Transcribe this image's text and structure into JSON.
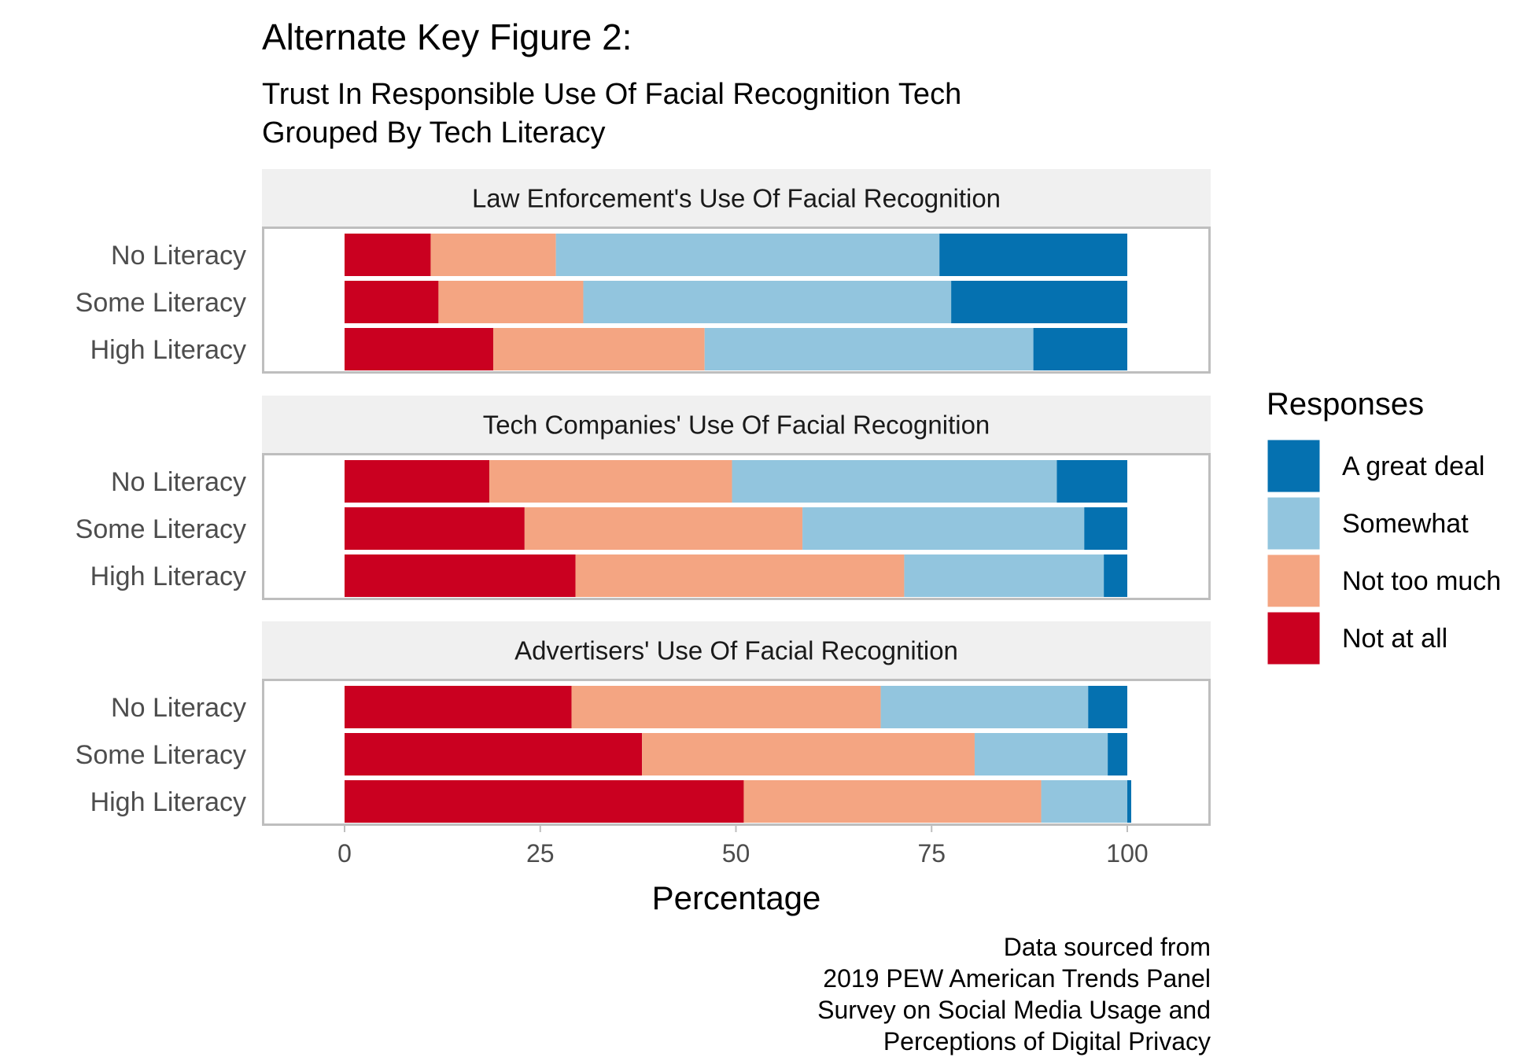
{
  "chart_data": {
    "type": "bar",
    "orientation": "horizontal",
    "stacked": true,
    "title": "Alternate Key Figure 2:",
    "subtitle": [
      "Trust In Responsible Use Of Facial Recognition Tech",
      "Grouped By Tech Literacy"
    ],
    "xlabel": "Percentage",
    "xlim": [
      0,
      100
    ],
    "xticks": [
      "0",
      "25",
      "50",
      "75",
      "100"
    ],
    "categories": [
      "No Literacy",
      "Some Literacy",
      "High Literacy"
    ],
    "legend": {
      "title": "Responses",
      "position": "right",
      "entries": [
        "A great deal",
        "Somewhat",
        "Not too much",
        "Not at all"
      ]
    },
    "series_colors": {
      "Not at all": "#CA0020",
      "Not too much": "#F4A582",
      "Somewhat": "#92C5DE",
      "A great deal": "#0571B0"
    },
    "stack_order": [
      "Not at all",
      "Not too much",
      "Somewhat",
      "A great deal"
    ],
    "panels": [
      {
        "title": "Law Enforcement's Use Of Facial Recognition",
        "series": [
          {
            "name": "Not at all",
            "values": [
              11,
              12,
              19
            ]
          },
          {
            "name": "Not too much",
            "values": [
              16,
              18.5,
              27
            ]
          },
          {
            "name": "Somewhat",
            "values": [
              49,
              47,
              42
            ]
          },
          {
            "name": "A great deal",
            "values": [
              24,
              22.5,
              12
            ]
          }
        ]
      },
      {
        "title": "Tech Companies' Use Of Facial Recognition",
        "series": [
          {
            "name": "Not at all",
            "values": [
              18.5,
              23,
              29.5
            ]
          },
          {
            "name": "Not too much",
            "values": [
              31,
              35.5,
              42
            ]
          },
          {
            "name": "Somewhat",
            "values": [
              41.5,
              36,
              25.5
            ]
          },
          {
            "name": "A great deal",
            "values": [
              9,
              5.5,
              3
            ]
          }
        ]
      },
      {
        "title": "Advertisers' Use Of Facial Recognition",
        "series": [
          {
            "name": "Not at all",
            "values": [
              29,
              38,
              51
            ]
          },
          {
            "name": "Not too much",
            "values": [
              39.5,
              42.5,
              38
            ]
          },
          {
            "name": "Somewhat",
            "values": [
              26.5,
              17,
              11
            ]
          },
          {
            "name": "A great deal",
            "values": [
              5,
              2.5,
              0.5
            ]
          }
        ]
      }
    ],
    "grid": false,
    "caption": [
      "Data sourced from",
      "2019 PEW American Trends Panel",
      "Survey on Social Media Usage and",
      "Perceptions of Digital Privacy"
    ]
  }
}
